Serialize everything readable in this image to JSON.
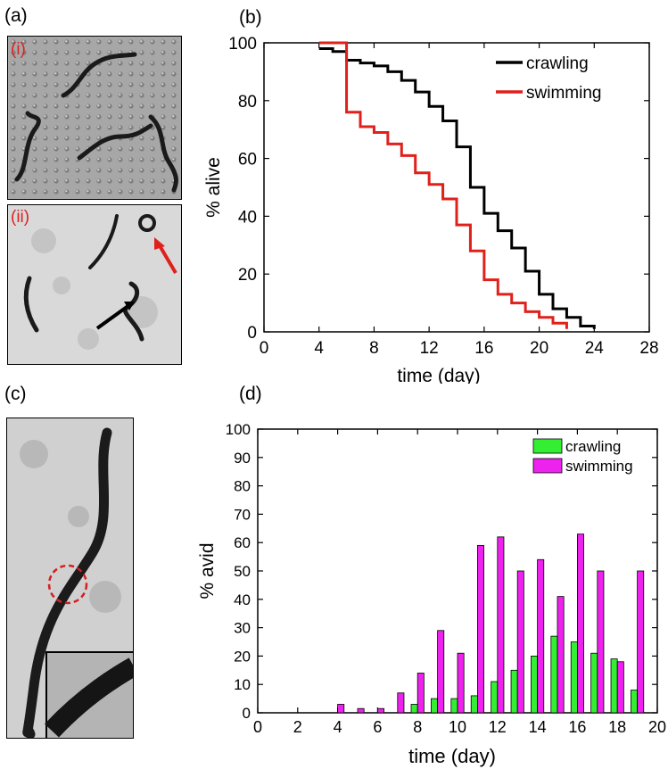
{
  "panel_labels": {
    "a": "(a)",
    "b": "(b)",
    "c": "(c)",
    "d": "(d)"
  },
  "photo_a": {
    "sub_i": "(i)",
    "sub_ii": "(ii)"
  },
  "chart_data": [
    {
      "type": "line",
      "subtype": "step",
      "xlabel": "time (day)",
      "ylabel": "% alive",
      "xlim": [
        0,
        28
      ],
      "ylim": [
        0,
        100
      ],
      "xticks": [
        "0",
        "4",
        "8",
        "12",
        "16",
        "20",
        "24",
        "28"
      ],
      "yticks": [
        "0",
        "20",
        "40",
        "60",
        "80",
        "100"
      ],
      "legend_position": "top-right",
      "series": [
        {
          "name": "crawling",
          "color": "#000000",
          "x": [
            4,
            5,
            6,
            7,
            8,
            9,
            10,
            11,
            12,
            13,
            14,
            15,
            16,
            17,
            18,
            19,
            20,
            21,
            22,
            23,
            24
          ],
          "y": [
            98,
            97,
            94,
            93,
            92,
            90,
            87,
            83,
            78,
            73,
            64,
            50,
            41,
            35,
            29,
            21,
            13,
            8,
            5,
            2,
            1
          ]
        },
        {
          "name": "swimming",
          "color": "#e0201b",
          "x": [
            4,
            6,
            7,
            8,
            9,
            10,
            11,
            12,
            13,
            14,
            15,
            16,
            17,
            18,
            19,
            20,
            21,
            22
          ],
          "y": [
            100,
            76,
            71,
            69,
            65,
            61,
            55,
            51,
            46,
            37,
            28,
            18,
            13,
            10,
            7,
            5,
            3,
            1
          ],
          "start_from": 100
        }
      ]
    },
    {
      "type": "bar",
      "xlabel": "time (day)",
      "ylabel": "% avid",
      "xlim": [
        0,
        20
      ],
      "ylim": [
        0,
        100
      ],
      "xticks": [
        "0",
        "2",
        "4",
        "6",
        "8",
        "10",
        "12",
        "14",
        "16",
        "18",
        "20"
      ],
      "yticks": [
        "0",
        "10",
        "20",
        "30",
        "40",
        "50",
        "60",
        "70",
        "80",
        "90",
        "100"
      ],
      "legend_position": "top-right",
      "categories": [
        4,
        5,
        6,
        7,
        8,
        9,
        10,
        11,
        12,
        13,
        14,
        15,
        16,
        17,
        18,
        19
      ],
      "series": [
        {
          "name": "crawling",
          "color": "#33ee33",
          "values": [
            0,
            0,
            0,
            0,
            3,
            5,
            5,
            6,
            11,
            15,
            20,
            27,
            25,
            21,
            19,
            8
          ]
        },
        {
          "name": "swimming",
          "color": "#ee22ee",
          "values": [
            3,
            1.5,
            1.5,
            7,
            14,
            29,
            21,
            59,
            62,
            50,
            54,
            41,
            63,
            50,
            18,
            50
          ]
        }
      ]
    }
  ]
}
